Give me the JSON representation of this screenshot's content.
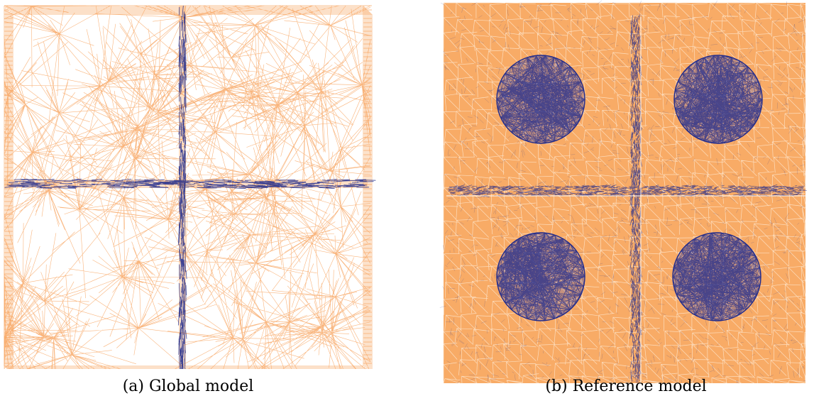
{
  "figure": {
    "panels": [
      {
        "id": "a",
        "caption": "(a) Global model"
      },
      {
        "id": "b",
        "caption": "(b) Reference model"
      }
    ],
    "colors": {
      "mesh_matrix": "#f7a35c",
      "mesh_matrix_fill": "#f8ab66",
      "mesh_inclusion": "#1f2a8c",
      "background": "#ffffff"
    }
  }
}
